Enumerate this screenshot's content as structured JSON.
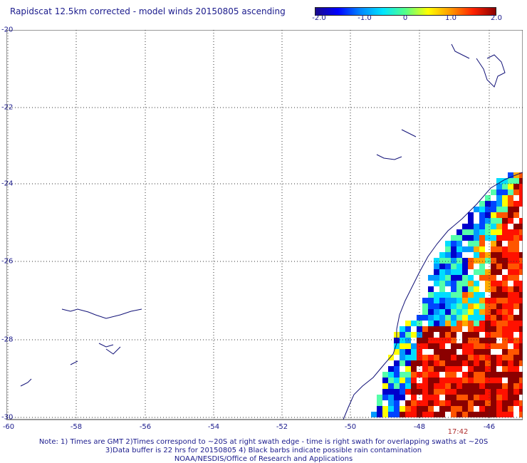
{
  "title": "Rapidscat 12.5km corrected - model winds 20150805 ascending",
  "colorbar": {
    "labels": [
      "-2.0",
      "-1.0",
      "0",
      "1.0",
      "2.0"
    ],
    "values": [
      -2,
      -1,
      0,
      1,
      2
    ],
    "colors": [
      "#1a0a8c",
      "#0000ff",
      "#0088ff",
      "#00e5ff",
      "#55ff88",
      "#ffff00",
      "#ff9900",
      "#ff2200",
      "#8b0000"
    ]
  },
  "axes": {
    "lon_ticks": [
      "-60",
      "-58",
      "-56",
      "-54",
      "-52",
      "-50",
      "-48",
      "-46"
    ],
    "lat_ticks": [
      "-20",
      "-22",
      "-24",
      "-26",
      "-28",
      "-30"
    ]
  },
  "time_label": "17:42",
  "notes": {
    "line1": "Note: 1) Times are GMT 2)Times correspond to ~20S at right swath edge - time is right swath for overlapping swaths at ~20S",
    "line2": "3)Data buffer is 22 hrs for 20150805 4) Black barbs indicate possible rain contamination",
    "line3": "NOAA/NESDIS/Office of Research and Applications"
  }
}
